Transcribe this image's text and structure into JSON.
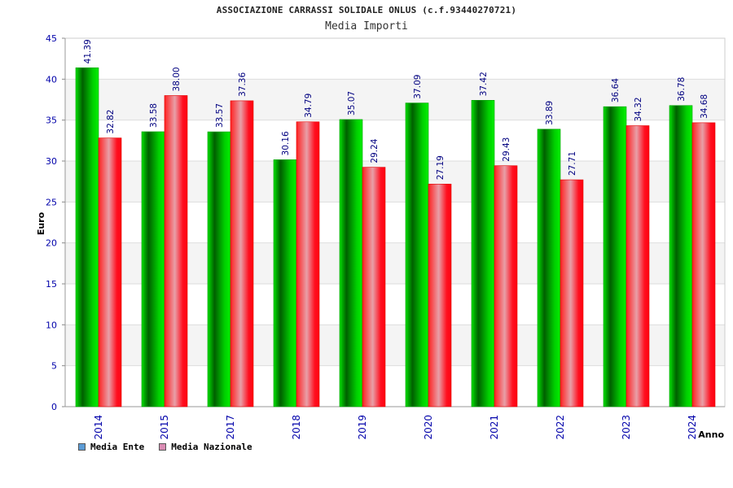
{
  "header": {
    "title": "ASSOCIAZIONE CARRASSI SOLIDALE ONLUS (c.f.93440270721)",
    "subtitle": "Media Importi"
  },
  "legend": {
    "items": [
      {
        "label": "Media Ente",
        "color": "#5b9bd5"
      },
      {
        "label": "Media Nazionale",
        "color": "#d98cb3"
      }
    ]
  },
  "chart_data": {
    "type": "bar",
    "title": "Media Importi",
    "xlabel": "Anno",
    "ylabel": "Euro",
    "ylim": [
      0,
      45
    ],
    "yticks": [
      0,
      5,
      10,
      15,
      20,
      25,
      30,
      35,
      40,
      45
    ],
    "categories": [
      "2014",
      "2015",
      "2017",
      "2018",
      "2019",
      "2020",
      "2021",
      "2022",
      "2023",
      "2024"
    ],
    "series": [
      {
        "name": "Media Ente",
        "color": "#00b300",
        "values": [
          41.39,
          33.58,
          33.57,
          30.16,
          35.07,
          37.09,
          37.42,
          33.89,
          36.64,
          36.78
        ],
        "labels": [
          "41.39",
          "33.58",
          "33.57",
          "30.16",
          "35.07",
          "37.09",
          "37.42",
          "33.89",
          "36.64",
          "36.78"
        ]
      },
      {
        "name": "Media Nazionale",
        "color": "#ff0000",
        "values": [
          32.82,
          38.0,
          37.36,
          34.79,
          29.24,
          27.19,
          29.43,
          27.71,
          34.32,
          34.68
        ],
        "labels": [
          "32.82",
          "38.00",
          "37.36",
          "34.79",
          "29.24",
          "27.19",
          "29.43",
          "27.71",
          "34.32",
          "34.68"
        ]
      }
    ],
    "grid": true,
    "legend_position": "bottom-left"
  }
}
